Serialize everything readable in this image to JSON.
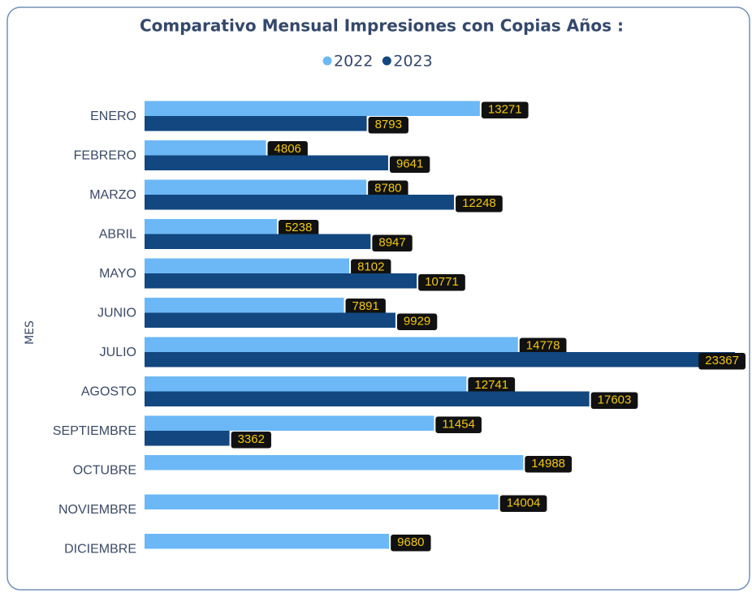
{
  "chart_data": {
    "type": "hbar",
    "title": "Comparativo Mensual Impresiones con Copias Años :",
    "y_axis_label": "MES",
    "categories": [
      "ENERO",
      "FEBRERO",
      "MARZO",
      "ABRIL",
      "MAYO",
      "JUNIO",
      "JULIO",
      "AGOSTO",
      "SEPTIEMBRE",
      "OCTUBRE",
      "NOVIEMBRE",
      "DICIEMBRE"
    ],
    "series": [
      {
        "name": "2022",
        "color": "#6cb8f6",
        "values": [
          13271,
          4806,
          8780,
          5238,
          8102,
          7891,
          14778,
          12741,
          11454,
          14988,
          14004,
          9680
        ]
      },
      {
        "name": "2023",
        "color": "#12477f",
        "values": [
          8793,
          9641,
          12248,
          8947,
          10771,
          9929,
          23367,
          17603,
          3362,
          null,
          null,
          null
        ]
      }
    ],
    "legend": "top"
  }
}
